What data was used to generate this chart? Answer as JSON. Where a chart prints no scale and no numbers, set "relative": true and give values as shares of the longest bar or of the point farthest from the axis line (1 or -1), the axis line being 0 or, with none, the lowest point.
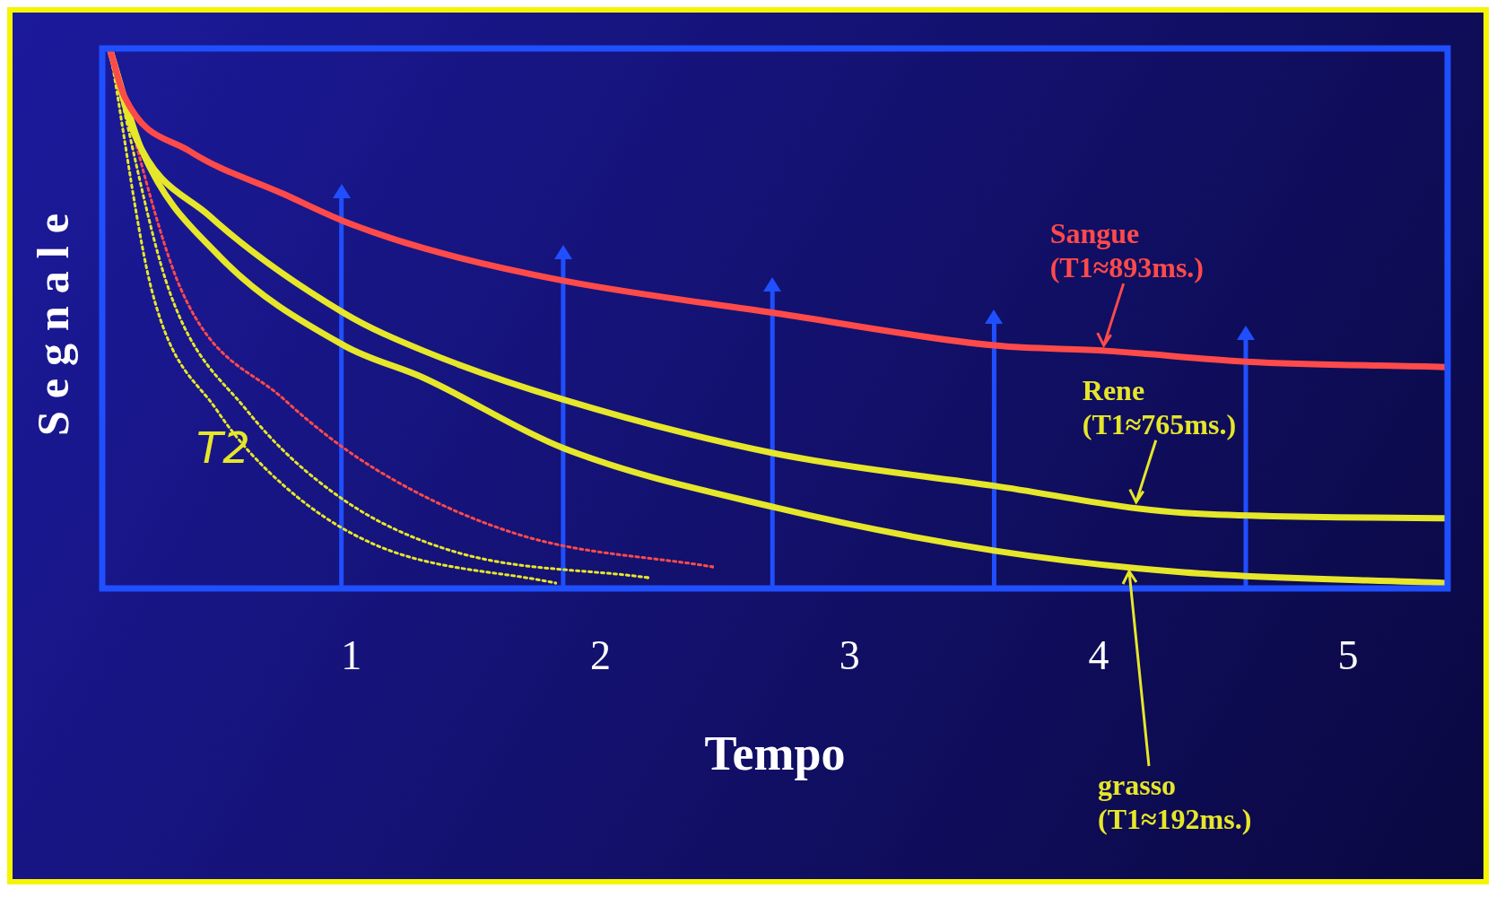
{
  "chart_data": {
    "type": "line",
    "relative": true,
    "xlabel": "Tempo",
    "ylabel": "Segnale",
    "xlim": [
      0,
      5.4
    ],
    "xticks": [
      1,
      2,
      3,
      4,
      5
    ],
    "grid": false,
    "legend": false,
    "marker": "none",
    "series": [
      {
        "color": "#ff4a4a",
        "x": [
          0.03,
          0.09,
          0.35,
          0.73,
          0.97,
          1.29,
          1.85,
          2.7,
          3.58,
          4.03,
          4.59,
          5.39
        ],
        "values": [
          1,
          0.91,
          0.81,
          0.73,
          0.68,
          0.63,
          0.57,
          0.51,
          0.45,
          0.44,
          0.42,
          0.41
        ]
      },
      {
        "color": "#e6e62a",
        "x": [
          0.03,
          0.13,
          0.43,
          0.97,
          1.29,
          1.85,
          2.7,
          3.58,
          4.34,
          5.39
        ],
        "values": [
          1,
          0.84,
          0.69,
          0.51,
          0.44,
          0.35,
          0.25,
          0.19,
          0.14,
          0.13
        ]
      },
      {
        "color": "#e6e62a",
        "x": [
          0.03,
          0.16,
          0.46,
          0.97,
          1.29,
          1.85,
          2.7,
          3.58,
          4.34,
          5.39
        ],
        "values": [
          1,
          0.81,
          0.62,
          0.45,
          0.39,
          0.26,
          0.15,
          0.07,
          0.03,
          0.01
        ]
      },
      {
        "color": "#ff4a4a",
        "line_style": "dotted",
        "x": [
          0.03,
          0.32,
          0.73,
          1.1,
          1.67,
          2.45
        ],
        "values": [
          1,
          0.55,
          0.35,
          0.22,
          0.1,
          0.04
        ]
      },
      {
        "color": "#e6e62a",
        "line_style": "dotted",
        "x": [
          0.03,
          0.27,
          0.58,
          0.95,
          1.4,
          2.19
        ],
        "values": [
          1,
          0.55,
          0.33,
          0.17,
          0.07,
          0.02
        ]
      },
      {
        "color": "#e6e62a",
        "line_style": "dotted",
        "x": [
          0.03,
          0.2,
          0.46,
          0.73,
          1.1,
          1.82
        ],
        "values": [
          1,
          0.55,
          0.33,
          0.19,
          0.08,
          0.01
        ]
      }
    ],
    "ref_lines": [
      {
        "axis": "x",
        "value": 0.96,
        "color": "#1f4fff"
      },
      {
        "axis": "x",
        "value": 1.85,
        "color": "#1f4fff"
      },
      {
        "axis": "x",
        "value": 2.69,
        "color": "#1f4fff"
      },
      {
        "axis": "x",
        "value": 3.58,
        "color": "#1f4fff"
      },
      {
        "axis": "x",
        "value": 4.59,
        "color": "#1f4fff"
      }
    ],
    "annotations": [
      {
        "text": "Sangue\n(T1≈893ms.)",
        "x": 4.02,
        "y": 0.44
      },
      {
        "text": "Rene\n(T1≈765ms.)",
        "x": 4.15,
        "y": 0.15
      },
      "grasso\n(T1≈192ms.)",
      "T2"
    ]
  }
}
